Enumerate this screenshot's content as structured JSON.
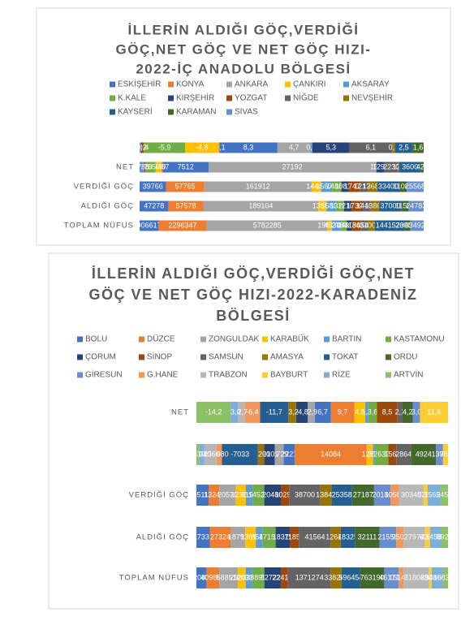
{
  "chart_data": [
    {
      "type": "bar",
      "stacked": "percent",
      "title": [
        "İLLERİN ALDIĞI GÖÇ,VERDİĞİ",
        "GÖÇ,NET GÖÇ VE NET GÖÇ HIZI-",
        "2022-İÇ ANADOLU BÖLGESİ"
      ],
      "categories": [
        null,
        "NET",
        "VERDİĞİ GÖÇ",
        "ALDIĞI GÖÇ",
        "TOPLAM NÜFUS"
      ],
      "series": [
        {
          "name": "ESKİŞEHİR",
          "color": "#4472c4",
          "values": [
            8.3,
            7512,
            39766,
            47278,
            906617
          ],
          "value_labels": [
            "8,3",
            "7512",
            "39766",
            "47278",
            "906617"
          ]
        },
        {
          "name": "KONYA",
          "color": "#ed7d31",
          "values": [
            -0.1,
            -187,
            57765,
            57578,
            2296347
          ],
          "value_labels": [
            "-0,1",
            "-187",
            "57765",
            "57578",
            "2296347"
          ]
        },
        {
          "name": "ANKARA",
          "color": "#a5a5a5",
          "values": [
            4.7,
            27192,
            161912,
            189104,
            5782285
          ],
          "value_labels": [
            "4,7",
            "27192",
            "161912",
            "189104",
            "5782285"
          ]
        },
        {
          "name": "ÇANKIRI",
          "color": "#ffc000",
          "values": [
            -4.8,
            -940,
            14440,
            13500,
            195766
          ],
          "value_labels": [
            "-4,8",
            "-940",
            "14440",
            "13500",
            "195766"
          ]
        },
        {
          "name": "AKSARAY",
          "color": "#5b9bd5",
          "values": [
            0.3,
            130,
            15670,
            15800,
            433055
          ],
          "value_labels": [
            "0,3",
            "130",
            "15670",
            "15800",
            "433055"
          ]
        },
        {
          "name": "K.KALE",
          "color": "#70ad47",
          "values": [
            -5.9,
            -1650,
            14850,
            13200,
            278749
          ],
          "value_labels": [
            "-5,9",
            "-1650",
            "14850",
            "13200",
            "278749"
          ]
        },
        {
          "name": "KIRŞEHİR",
          "color": "#264478",
          "values": [
            5.3,
            1290,
            10810,
            12100,
            243042
          ],
          "value_labels": [
            "5,3",
            "1290",
            "10810",
            "12100",
            "243042"
          ]
        },
        {
          "name": "YOZGAT",
          "color": "#9e480e",
          "values": [
            -0.4,
            -170,
            17470,
            17300,
            418442
          ],
          "value_labels": [
            "-0,4",
            "-170",
            "17470",
            "17300",
            "418442"
          ]
        },
        {
          "name": "NİĞDE",
          "color": "#636363",
          "values": [
            6.1,
            2230,
            12170,
            14400,
            365419
          ],
          "value_labels": [
            "6,1",
            "2230",
            "12170",
            "14400",
            "365419"
          ]
        },
        {
          "name": "NEVŞEHİR",
          "color": "#997300",
          "values": [
            0.4,
            120,
            13680,
            13800,
            310011
          ],
          "value_labels": [
            "0,4",
            "120",
            "13680",
            "13800",
            "310011"
          ]
        },
        {
          "name": "KAYSERİ",
          "color": "#255e91",
          "values": [
            2.5,
            3600,
            33400,
            37000,
            1441523
          ],
          "value_labels": [
            "2,5",
            "3600",
            "33400",
            "37000",
            "1441523"
          ]
        },
        {
          "name": "KARAMAN",
          "color": "#43682b",
          "values": [
            1.6,
            420,
            11080,
            11500,
            260838
          ],
          "value_labels": [
            "1,6",
            "420",
            "11080",
            "11500",
            "260838"
          ]
        },
        {
          "name": "SIVAS",
          "color": "#698ed0",
          "values": [
            -0.2,
            -785,
            25568,
            24783,
            634924
          ],
          "value_labels": [
            "-0,2",
            "-785",
            "25568",
            "24783",
            "634924"
          ]
        }
      ]
    },
    {
      "type": "bar",
      "stacked": "percent",
      "title": [
        "İLLERİN ALDIĞI GÖÇ,VERDİĞİ GÖÇ,NET",
        "GÖÇ VE NET GÖÇ HIZI-2022-KARADENİZ",
        "BÖLGESİ"
      ],
      "categories": [
        "NET",
        null,
        "VERDİĞİ GÖÇ",
        "ALDIĞI GÖÇ",
        "TOPLAM NÜFUS"
      ],
      "series": [
        {
          "name": "BOLU",
          "color": "#4472c4",
          "values": [
            6.7,
            2221,
            15110,
            17331,
            320824
          ],
          "value_labels": [
            "6,7",
            "2221",
            "15110",
            "17331",
            "320824"
          ]
        },
        {
          "name": "DÜZCE",
          "color": "#ed7d31",
          "values": [
            9.7,
            14084,
            13240,
            27324,
            409865
          ],
          "value_labels": [
            "9,7",
            "14084",
            "13240",
            "27324",
            "409865"
          ]
        },
        {
          "name": "ZONGULDAK",
          "color": "#a5a5a5",
          "values": [
            -2.9,
            -1729,
            20520,
            18791,
            588510
          ],
          "value_labels": [
            "-2,9",
            "-1729",
            "20520",
            "18791",
            "588510"
          ]
        },
        {
          "name": "KARABÜK",
          "color": "#ffc000",
          "values": [
            4.5,
            1253,
            12360,
            13613,
            252058
          ],
          "value_labels": [
            "4,5",
            "1253",
            "12360",
            "13613",
            "252058"
          ]
        },
        {
          "name": "BARTIN",
          "color": "#5b9bd5",
          "values": [
            1.2,
            356,
            8190,
            8546,
            203351
          ],
          "value_labels": [
            "1,2",
            "356",
            "8190",
            "8546",
            "203351"
          ]
        },
        {
          "name": "KASTAMONU",
          "color": "#70ad47",
          "values": [
            3.6,
            2639,
            14520,
            17159,
            388990
          ],
          "value_labels": [
            "3,6",
            "2639",
            "14520",
            "17159",
            "388990"
          ]
        },
        {
          "name": "ÇORUM",
          "color": "#264478",
          "values": [
            -4.8,
            -2101,
            20480,
            18379,
            527220
          ],
          "value_labels": [
            "-4,8",
            "-2101",
            "20480",
            "18379",
            "527220"
          ]
        },
        {
          "name": "SİNOP",
          "color": "#9e480e",
          "values": [
            8.5,
            1563,
            10290,
            11853,
            224198
          ],
          "value_labels": [
            "8,5",
            "1563",
            "10290",
            "11853",
            "224198"
          ]
        },
        {
          "name": "SAMSUN",
          "color": "#636363",
          "values": [
            2.1,
            2864,
            38700,
            41564,
            1371274
          ],
          "value_labels": [
            "2,1",
            "2864",
            "38700",
            "41564",
            "1371274"
          ]
        },
        {
          "name": "AMASYA",
          "color": "#997300",
          "values": [
            -3.2,
            -1200,
            13847,
            12647,
            338267
          ],
          "value_labels": [
            "-3,2",
            "-1200",
            "13847",
            "12647",
            "338267"
          ]
        },
        {
          "name": "TOKAT",
          "color": "#255e91",
          "values": [
            -11.7,
            -7033,
            25358,
            18325,
            596454
          ],
          "value_labels": [
            "-11,7",
            "-7033",
            "25358",
            "18325",
            "596454"
          ]
        },
        {
          "name": "ORDU",
          "color": "#43682b",
          "values": [
            4.2,
            4924,
            27187,
            32111,
            763190
          ],
          "value_labels": [
            "4,2",
            "4924",
            "27187",
            "32111",
            "763190"
          ]
        },
        {
          "name": "GİRESUN",
          "color": "#698ed0",
          "values": [
            3.0,
            1376,
            20180,
            21556,
            461712
          ],
          "value_labels": [
            "3,0",
            "1376",
            "20180",
            "21556",
            "461712"
          ]
        },
        {
          "name": "G.HANE",
          "color": "#f1975a",
          "values": [
            -6.4,
            -1080,
            10580,
            9500,
            151449
          ],
          "value_labels": [
            "-6,4",
            "-1080",
            "10580",
            "9500",
            "151449"
          ]
        },
        {
          "name": "TRABZON",
          "color": "#b7b7b7",
          "values": [
            -2.7,
            -2366,
            30340,
            27974,
            818023
          ],
          "value_labels": [
            "-2,7",
            "-2366",
            "30340",
            "27974",
            "818023"
          ]
        },
        {
          "name": "BAYBURT",
          "color": "#ffcd33",
          "values": [
            11.6,
            983,
            5280,
            6263,
            85042
          ],
          "value_labels": [
            "11,6",
            "983",
            "5280",
            "6263",
            "85042"
          ]
        },
        {
          "name": "RİZE",
          "color": "#7cafdd",
          "values": [
            -3.0,
            -1040,
            15620,
            14580,
            348608
          ],
          "value_labels": [
            "-3,0",
            "-1040",
            "15620",
            "14580",
            "348608"
          ]
        },
        {
          "name": "ARTVİN",
          "color": "#8cc168",
          "values": [
            -14.2,
            -530,
            9450,
            8920,
            168370
          ],
          "value_labels": [
            "-14,2",
            "-530",
            "9450",
            "8920",
            "168370"
          ]
        }
      ]
    }
  ]
}
